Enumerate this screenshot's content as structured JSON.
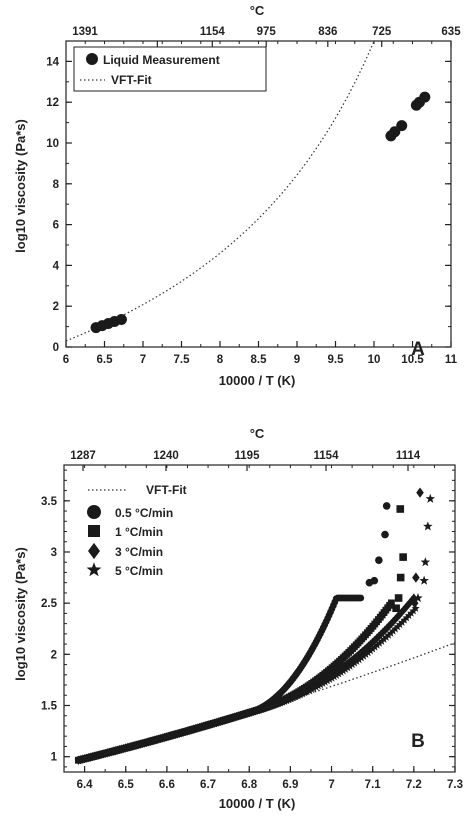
{
  "chart_data": [
    {
      "panel": "A",
      "type": "scatter",
      "top_axis_label": "°C",
      "top_ticks": [
        "1391",
        "1154",
        "975",
        "836",
        "725",
        "635"
      ],
      "xlabel": "10000 / T (K)",
      "ylabel": "log10 viscosity (Pa*s)",
      "xlim": [
        6,
        11
      ],
      "ylim": [
        0,
        15
      ],
      "xticks": [
        "6",
        "6.5",
        "7",
        "7.5",
        "8",
        "8.5",
        "9",
        "9.5",
        "10",
        "10.5",
        "11"
      ],
      "yticks": [
        "0",
        "2",
        "4",
        "6",
        "8",
        "10",
        "12",
        "14"
      ],
      "legend_position": "top-left",
      "grid": false,
      "series": [
        {
          "name": "Liquid Measurement",
          "marker": "circle",
          "points": [
            [
              6.39,
              0.95
            ],
            [
              6.47,
              1.05
            ],
            [
              6.55,
              1.15
            ],
            [
              6.63,
              1.25
            ],
            [
              6.72,
              1.35
            ],
            [
              10.22,
              10.35
            ],
            [
              10.27,
              10.55
            ],
            [
              10.36,
              10.85
            ],
            [
              10.55,
              11.85
            ],
            [
              10.59,
              12.0
            ],
            [
              10.66,
              12.25
            ]
          ]
        },
        {
          "name": "VFT-Fit",
          "style": "dotted",
          "A": -4.55,
          "B": 14.43,
          "C": 4.966
        }
      ]
    },
    {
      "panel": "B",
      "type": "scatter",
      "top_axis_label": "°C",
      "top_ticks": [
        "1287",
        "1240",
        "1195",
        "1154",
        "1114"
      ],
      "xlabel": "10000 / T (K)",
      "ylabel": "log10 viscosity (Pa*s)",
      "xlim": [
        6.35,
        7.3
      ],
      "ylim": [
        0.85,
        3.85
      ],
      "xticks": [
        "6.4",
        "6.5",
        "6.6",
        "6.7",
        "6.8",
        "6.9",
        "7",
        "7.1",
        "7.2",
        "7.3"
      ],
      "yticks": [
        "1",
        "1.5",
        "2",
        "2.5",
        "3",
        "3.5"
      ],
      "legend_position": "top-left",
      "grid": false,
      "series": [
        {
          "name": "VFT-Fit",
          "style": "dotted"
        },
        {
          "name": "0.5 °C/min",
          "marker": "circle",
          "x_end": 7.134,
          "curve_end": [
            7.072,
            2.55
          ],
          "isolated": [
            [
              7.092,
              2.7
            ],
            [
              7.104,
              2.72
            ],
            [
              7.115,
              2.92
            ],
            [
              7.13,
              3.17
            ],
            [
              7.134,
              3.45
            ]
          ]
        },
        {
          "name": "1 °C/min",
          "marker": "square",
          "x_end": 7.174,
          "curve_end": [
            7.15,
            2.4
          ],
          "isolated": [
            [
              7.157,
              2.45
            ],
            [
              7.163,
              2.55
            ],
            [
              7.168,
              2.75
            ],
            [
              7.174,
              2.95
            ],
            [
              7.167,
              3.42
            ]
          ]
        },
        {
          "name": "3 °C/min",
          "marker": "diamond",
          "x_end": 7.215,
          "curve_end": [
            7.2,
            2.42
          ],
          "isolated": [
            [
              7.202,
              2.5
            ],
            [
              7.205,
              2.75
            ],
            [
              7.215,
              3.58
            ]
          ]
        },
        {
          "name": "5 °C/min",
          "marker": "star",
          "x_end": 7.238,
          "curve_end": [
            7.205,
            2.36
          ],
          "isolated": [
            [
              7.21,
              2.55
            ],
            [
              7.225,
              2.72
            ],
            [
              7.228,
              2.9
            ],
            [
              7.234,
              3.25
            ],
            [
              7.24,
              3.52
            ]
          ]
        }
      ]
    }
  ],
  "panel_labels": [
    "A",
    "B"
  ]
}
